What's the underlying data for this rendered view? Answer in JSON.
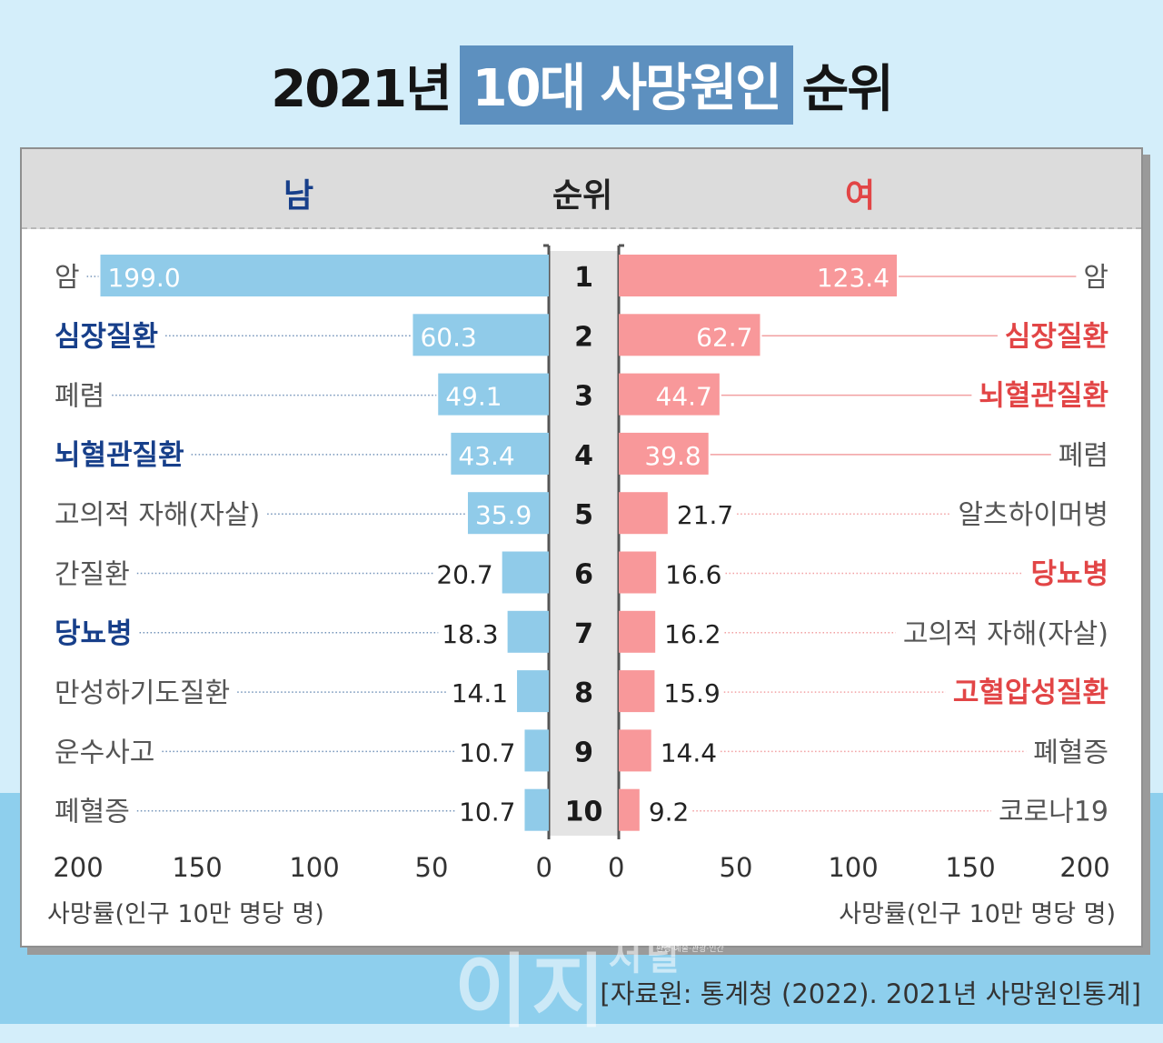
{
  "title": {
    "prefix": "2021년",
    "highlight": "10대 사망원인",
    "suffix": "순위"
  },
  "header": {
    "male": "남",
    "rank": "순위",
    "female": "여"
  },
  "colors": {
    "male_bar": "#90cbe9",
    "female_bar": "#f8989a",
    "male_emphasis": "#173f8a",
    "female_emphasis": "#e24546",
    "label": "#555555",
    "male_leader": "#7393b9",
    "female_leader": "#f2a0a2"
  },
  "chart_data": {
    "type": "bar",
    "ranks": [
      "1",
      "2",
      "3",
      "4",
      "5",
      "6",
      "7",
      "8",
      "9",
      "10"
    ],
    "series": [
      {
        "name": "남",
        "categories": [
          "암",
          "심장질환",
          "폐렴",
          "뇌혈관질환",
          "고의적 자해(자살)",
          "간질환",
          "당뇨병",
          "만성하기도질환",
          "운수사고",
          "폐혈증"
        ],
        "values": [
          199.0,
          60.3,
          49.1,
          43.4,
          35.9,
          20.7,
          18.3,
          14.1,
          10.7,
          10.7
        ],
        "value_labels": [
          "199.0",
          "60.3",
          "49.1",
          "43.4",
          "35.9",
          "20.7",
          "18.3",
          "14.1",
          "10.7",
          "10.7"
        ],
        "emphasis": [
          false,
          true,
          false,
          true,
          false,
          false,
          true,
          false,
          false,
          false
        ]
      },
      {
        "name": "여",
        "categories": [
          "암",
          "심장질환",
          "뇌혈관질환",
          "폐렴",
          "알츠하이머병",
          "당뇨병",
          "고의적 자해(자살)",
          "고혈압성질환",
          "폐혈증",
          "코로나19"
        ],
        "values": [
          123.4,
          62.7,
          44.7,
          39.8,
          21.7,
          16.6,
          16.2,
          15.9,
          14.4,
          9.2
        ],
        "value_labels": [
          "123.4",
          "62.7",
          "44.7",
          "39.8",
          "21.7",
          "16.6",
          "16.2",
          "15.9",
          "14.4",
          "9.2"
        ],
        "emphasis": [
          false,
          true,
          true,
          false,
          false,
          true,
          false,
          true,
          false,
          false
        ]
      }
    ],
    "xlim": [
      0,
      200
    ],
    "male_ticks": [
      "200",
      "150",
      "100",
      "50",
      "0"
    ],
    "female_ticks": [
      "0",
      "50",
      "100",
      "150",
      "200"
    ],
    "xlabel_male": "사망률(인구 10만 명당 명)",
    "xlabel_female": "사망률(인구 10만 명당 명)"
  },
  "watermark": {
    "main": "이지",
    "side": "저널",
    "small": "환경·예술·관광·인간"
  },
  "source": "[자료원: 통계청 (2022). 2021년 사망원인통계]"
}
